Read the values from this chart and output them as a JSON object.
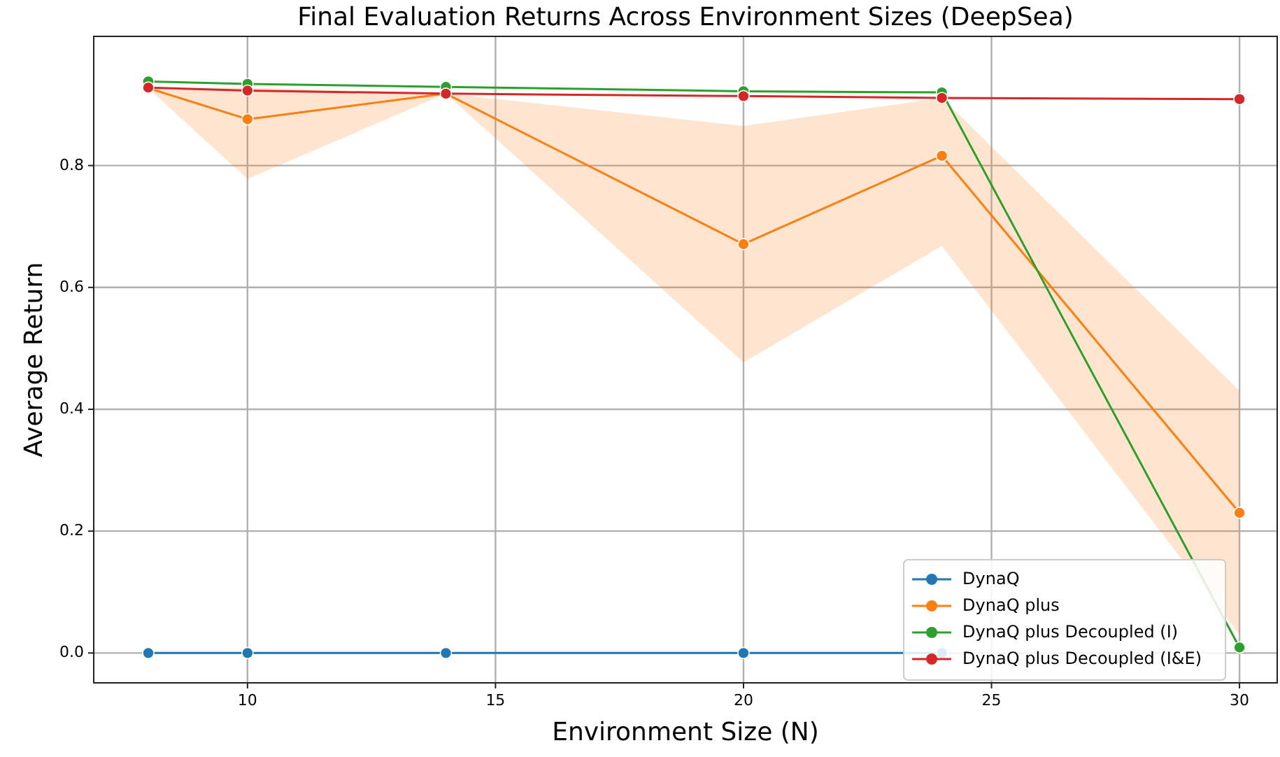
{
  "chart_data": {
    "type": "line",
    "title": "Final Evaluation Returns Across Environment Sizes (DeepSea)",
    "xlabel": "Environment Size (N)",
    "ylabel": "Average Return",
    "x": [
      8,
      10,
      14,
      20,
      24,
      30
    ],
    "series": [
      {
        "name": "DynaQ",
        "color": "#1f77b4",
        "values": [
          0,
          0,
          0,
          0,
          0,
          null
        ]
      },
      {
        "name": "DynaQ plus",
        "color": "#ff7f0e",
        "values": [
          0.927,
          0.876,
          0.918,
          0.671,
          0.816,
          0.23
        ],
        "lower": [
          0.927,
          0.778,
          0.918,
          0.477,
          0.668,
          0.03
        ],
        "upper": [
          0.927,
          0.928,
          0.918,
          0.865,
          0.911,
          0.43
        ]
      },
      {
        "name": "DynaQ plus Decoupled (I)",
        "color": "#2ca02c",
        "values": [
          0.938,
          0.934,
          0.929,
          0.922,
          0.92,
          0.009
        ]
      },
      {
        "name": "DynaQ plus Decoupled (I&E)",
        "color": "#d62728",
        "values": [
          0.928,
          0.923,
          0.918,
          0.914,
          0.911,
          0.909
        ]
      }
    ],
    "xlim": [
      6.9,
      30.76
    ],
    "xticks": [
      10,
      15,
      20,
      25,
      30
    ],
    "ylim": [
      -0.049,
      1.012
    ],
    "yticks": [
      {
        "value": 0,
        "label": "0.0"
      },
      {
        "value": 0.2,
        "label": "0.2"
      },
      {
        "value": 0.4,
        "label": "0.4"
      },
      {
        "value": 0.6,
        "label": "0.6"
      },
      {
        "value": 0.8,
        "label": "0.8"
      }
    ],
    "grid": true,
    "legend": "bottom right",
    "marker": "circle",
    "line_style": "solid"
  }
}
